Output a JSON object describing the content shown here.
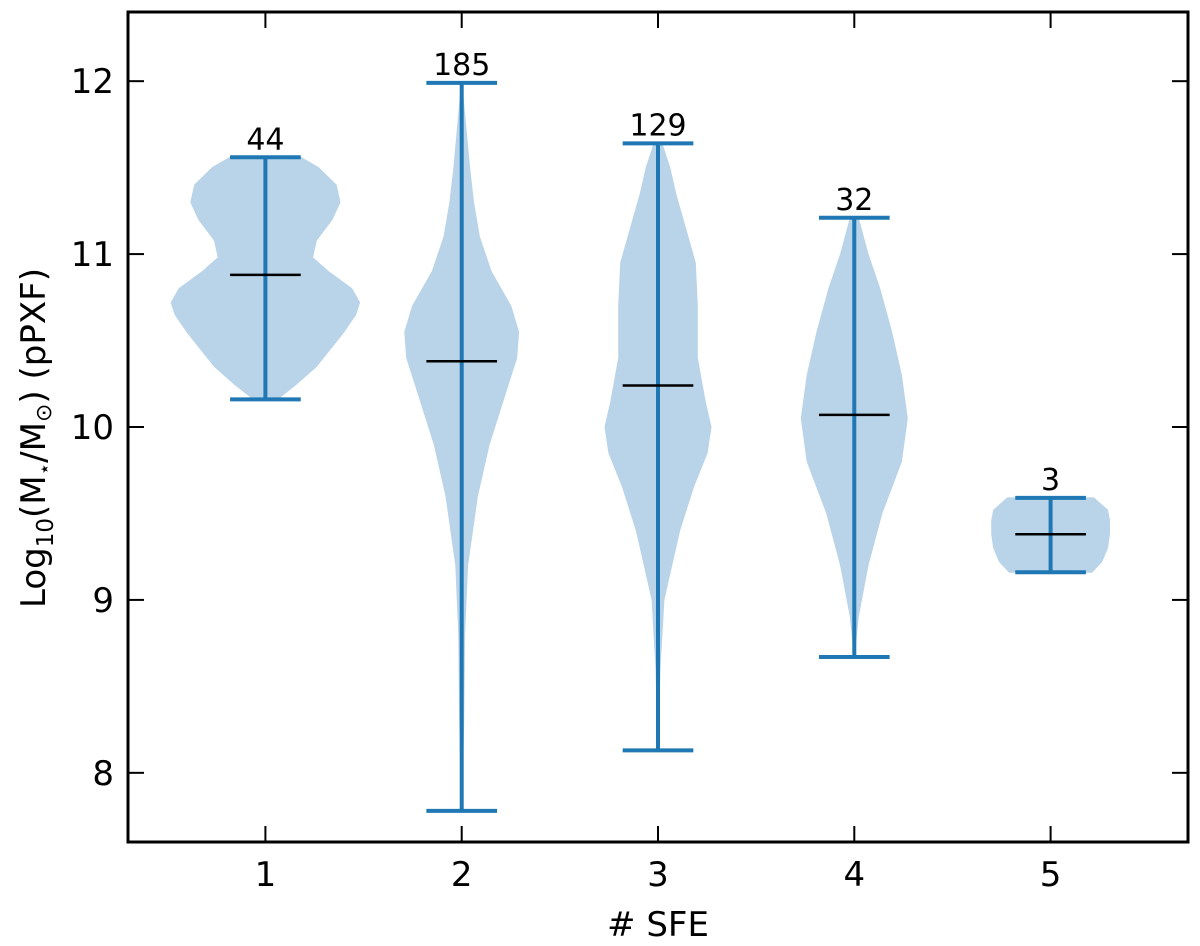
{
  "chart_data": {
    "type": "violin",
    "xlabel": "# SFE",
    "ylabel": "Log10(M⋆/M⊙) (pPXF)",
    "ylabel_parts": {
      "pre": "Log",
      "sub": "10",
      "post": "(M",
      "star": "⋆",
      "slash": "/M",
      "sun": "⊙",
      "tail": ") (pPXF)"
    },
    "xlim": [
      0.3,
      5.7
    ],
    "ylim": [
      7.6,
      12.4
    ],
    "x_ticks": [
      1,
      2,
      3,
      4,
      5
    ],
    "y_ticks": [
      8,
      9,
      10,
      11,
      12
    ],
    "grid": false,
    "colors": {
      "body": "#b9d3e8",
      "whisker": "#1f77b4",
      "median": "#000000",
      "axes": "#000000"
    },
    "series": [
      {
        "x": 1,
        "count_label": "44",
        "min": 10.16,
        "max": 11.56,
        "median": 10.88,
        "profile": [
          [
            10.16,
            0.06
          ],
          [
            10.25,
            0.16
          ],
          [
            10.35,
            0.26
          ],
          [
            10.45,
            0.33
          ],
          [
            10.55,
            0.4
          ],
          [
            10.65,
            0.46
          ],
          [
            10.72,
            0.48
          ],
          [
            10.8,
            0.44
          ],
          [
            10.9,
            0.32
          ],
          [
            10.98,
            0.24
          ],
          [
            11.08,
            0.26
          ],
          [
            11.2,
            0.34
          ],
          [
            11.3,
            0.38
          ],
          [
            11.4,
            0.36
          ],
          [
            11.5,
            0.27
          ],
          [
            11.56,
            0.18
          ]
        ]
      },
      {
        "x": 2,
        "count_label": "185",
        "min": 7.78,
        "max": 11.99,
        "median": 10.38,
        "profile": [
          [
            7.78,
            0.0
          ],
          [
            8.3,
            0.01
          ],
          [
            8.8,
            0.015
          ],
          [
            9.2,
            0.03
          ],
          [
            9.6,
            0.08
          ],
          [
            9.9,
            0.14
          ],
          [
            10.15,
            0.21
          ],
          [
            10.4,
            0.28
          ],
          [
            10.55,
            0.29
          ],
          [
            10.7,
            0.25
          ],
          [
            10.9,
            0.15
          ],
          [
            11.1,
            0.09
          ],
          [
            11.3,
            0.06
          ],
          [
            11.5,
            0.04
          ],
          [
            11.75,
            0.02
          ],
          [
            11.99,
            0.0
          ]
        ]
      },
      {
        "x": 3,
        "count_label": "129",
        "min": 8.13,
        "max": 11.64,
        "median": 10.24,
        "profile": [
          [
            8.13,
            0.0
          ],
          [
            8.6,
            0.01
          ],
          [
            9.0,
            0.03
          ],
          [
            9.4,
            0.11
          ],
          [
            9.65,
            0.18
          ],
          [
            9.85,
            0.25
          ],
          [
            10.0,
            0.27
          ],
          [
            10.15,
            0.24
          ],
          [
            10.4,
            0.2
          ],
          [
            10.7,
            0.2
          ],
          [
            10.95,
            0.19
          ],
          [
            11.15,
            0.14
          ],
          [
            11.35,
            0.09
          ],
          [
            11.5,
            0.06
          ],
          [
            11.64,
            0.02
          ]
        ]
      },
      {
        "x": 4,
        "count_label": "32",
        "min": 8.67,
        "max": 11.21,
        "median": 10.07,
        "profile": [
          [
            8.67,
            0.0
          ],
          [
            8.9,
            0.02
          ],
          [
            9.2,
            0.07
          ],
          [
            9.5,
            0.14
          ],
          [
            9.8,
            0.24
          ],
          [
            10.05,
            0.27
          ],
          [
            10.3,
            0.24
          ],
          [
            10.55,
            0.19
          ],
          [
            10.8,
            0.13
          ],
          [
            11.0,
            0.07
          ],
          [
            11.21,
            0.02
          ]
        ]
      },
      {
        "x": 5,
        "count_label": "3",
        "min": 9.16,
        "max": 9.59,
        "median": 9.38,
        "profile": [
          [
            9.16,
            0.21
          ],
          [
            9.22,
            0.26
          ],
          [
            9.3,
            0.29
          ],
          [
            9.38,
            0.3
          ],
          [
            9.46,
            0.3
          ],
          [
            9.52,
            0.29
          ],
          [
            9.56,
            0.25
          ],
          [
            9.59,
            0.22
          ]
        ]
      }
    ]
  }
}
